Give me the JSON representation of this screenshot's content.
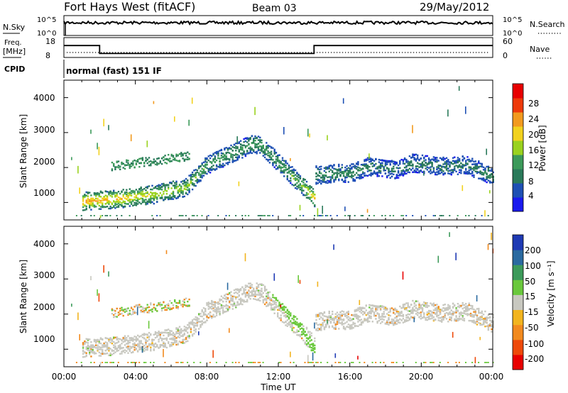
{
  "header": {
    "title": "Fort Hays West (fitACF)",
    "beam": "Beam 03",
    "date": "29/May/2012"
  },
  "strips": {
    "nsky_label": "N.Sky",
    "nsearch_label": "N.Search",
    "noise_ticks": [
      "10^5",
      "10^0"
    ],
    "freq_label": "Freq.",
    "freq_unit": "[MHz]",
    "freq_ticks": [
      "18",
      "8"
    ],
    "nave_label": "Nave",
    "nave_ticks": [
      "60",
      "0"
    ],
    "cpid_label": "CPID",
    "cpid_value": "normal (fast) 151 IF"
  },
  "chart_data": [
    {
      "type": "heatmap",
      "name": "power-panel",
      "ylabel": "Slant Range [km]",
      "xlim": [
        0,
        24
      ],
      "ylim": [
        500,
        4500
      ],
      "yticks": [
        "1000",
        "2000",
        "3000",
        "4000"
      ],
      "colorbar": {
        "label": "Power [dB]",
        "ticks": [
          "4",
          "8",
          "12",
          "16",
          "20",
          "24",
          "28"
        ],
        "range": [
          0,
          32
        ],
        "colors": [
          "#1a1aee",
          "#1e50b4",
          "#2a7a5a",
          "#3c9a5a",
          "#9ad21e",
          "#f2d21e",
          "#f29a1e",
          "#ee3a0a",
          "#e80000"
        ]
      },
      "bands": [
        {
          "t": [
            1.0,
            3.0,
            5.0,
            6.8,
            8.0,
            9.5,
            10.5,
            11.0,
            12.0,
            13.0,
            14.0
          ],
          "center": [
            1050,
            1120,
            1250,
            1450,
            2100,
            2450,
            2700,
            2650,
            2150,
            1650,
            1150
          ],
          "level": [
            24,
            22,
            18,
            16,
            12,
            12,
            12,
            12,
            12,
            14,
            22
          ]
        },
        {
          "t": [
            14.0,
            15.0,
            16.0,
            17.0,
            18.5,
            19.5,
            21.0,
            22.5,
            24.0
          ],
          "center": [
            1800,
            1850,
            1850,
            2050,
            1950,
            2150,
            2050,
            2100,
            1750
          ],
          "level": [
            10,
            10,
            10,
            8,
            8,
            8,
            8,
            8,
            10
          ]
        }
      ]
    },
    {
      "type": "heatmap",
      "name": "velocity-panel",
      "ylabel": "Slant Range [km]",
      "xlabel": "Time UT",
      "xlim": [
        0,
        24
      ],
      "ylim": [
        500,
        4500
      ],
      "xticks": [
        "00:00",
        "04:00",
        "08:00",
        "12:00",
        "16:00",
        "20:00",
        "00:00"
      ],
      "yticks": [
        "1000",
        "2000",
        "3000",
        "4000"
      ],
      "colorbar": {
        "label": "Velocity [m s⁻¹]",
        "ticks": [
          "200",
          "100",
          "50",
          "15",
          "-15",
          "-50",
          "-100",
          "-200"
        ],
        "colors": [
          "#1e3ab4",
          "#2a6aa0",
          "#3c9a5a",
          "#6ac83c",
          "#c8c8c0",
          "#f2b41e",
          "#f28a1e",
          "#ee4a0a",
          "#e80000"
        ]
      },
      "dominant_velocity": "-15 to 15",
      "green_track": {
        "t": [
          11.6,
          12.5,
          13.5,
          14.0
        ],
        "center": [
          2700,
          2100,
          1400,
          1000
        ]
      }
    }
  ],
  "strip_data": {
    "freq_steps_hours": [
      0,
      2.0,
      2.0,
      14.0,
      14.0,
      24
    ],
    "freq_values_mhz": [
      14,
      14,
      10,
      10,
      14,
      14
    ],
    "xlim": [
      0,
      24
    ]
  }
}
